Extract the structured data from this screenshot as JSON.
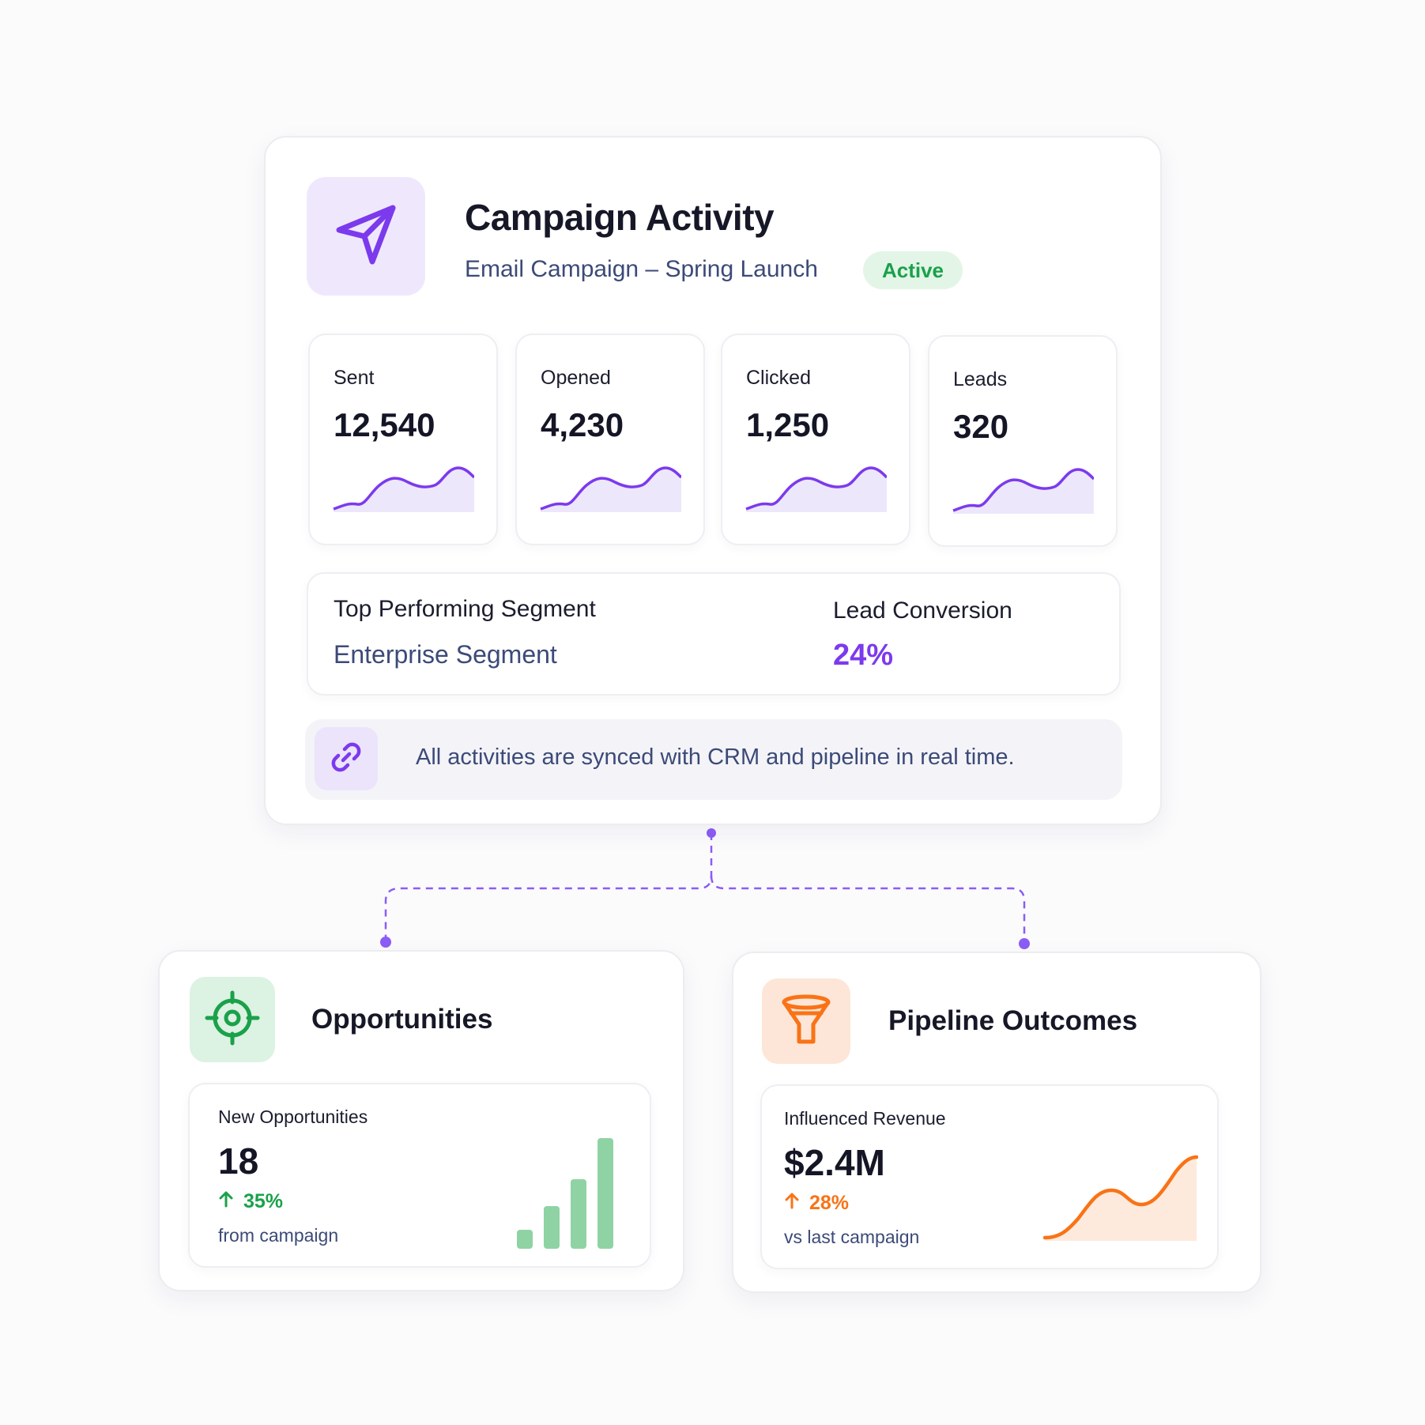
{
  "campaign": {
    "title": "Campaign Activity",
    "subtitle": "Email Campaign – Spring Launch",
    "status": "Active",
    "icon": "paper-plane-icon",
    "accent_color": "#7c3aed",
    "status_color": "#1aa14a"
  },
  "stats": [
    {
      "label": "Sent",
      "value": "12,540"
    },
    {
      "label": "Opened",
      "value": "4,230"
    },
    {
      "label": "Clicked",
      "value": "1,250"
    },
    {
      "label": "Leads",
      "value": "320"
    }
  ],
  "segment": {
    "label": "Top Performing Segment",
    "value": "Enterprise Segment"
  },
  "conversion": {
    "label": "Lead Conversion",
    "value": "24%"
  },
  "sync": {
    "icon": "link-icon",
    "text": "All activities are synced with CRM and pipeline in real time."
  },
  "opportunities": {
    "title": "Opportunities",
    "icon": "target-icon",
    "metric_label": "New Opportunities",
    "metric_value": "18",
    "delta": "35%",
    "note": "from campaign",
    "color": "#1aa14a"
  },
  "pipeline": {
    "title": "Pipeline Outcomes",
    "icon": "funnel-icon",
    "metric_label": "Influenced Revenue",
    "metric_value": "$2.4M",
    "delta": "28%",
    "note": "vs last campaign",
    "color": "#f97316"
  }
}
